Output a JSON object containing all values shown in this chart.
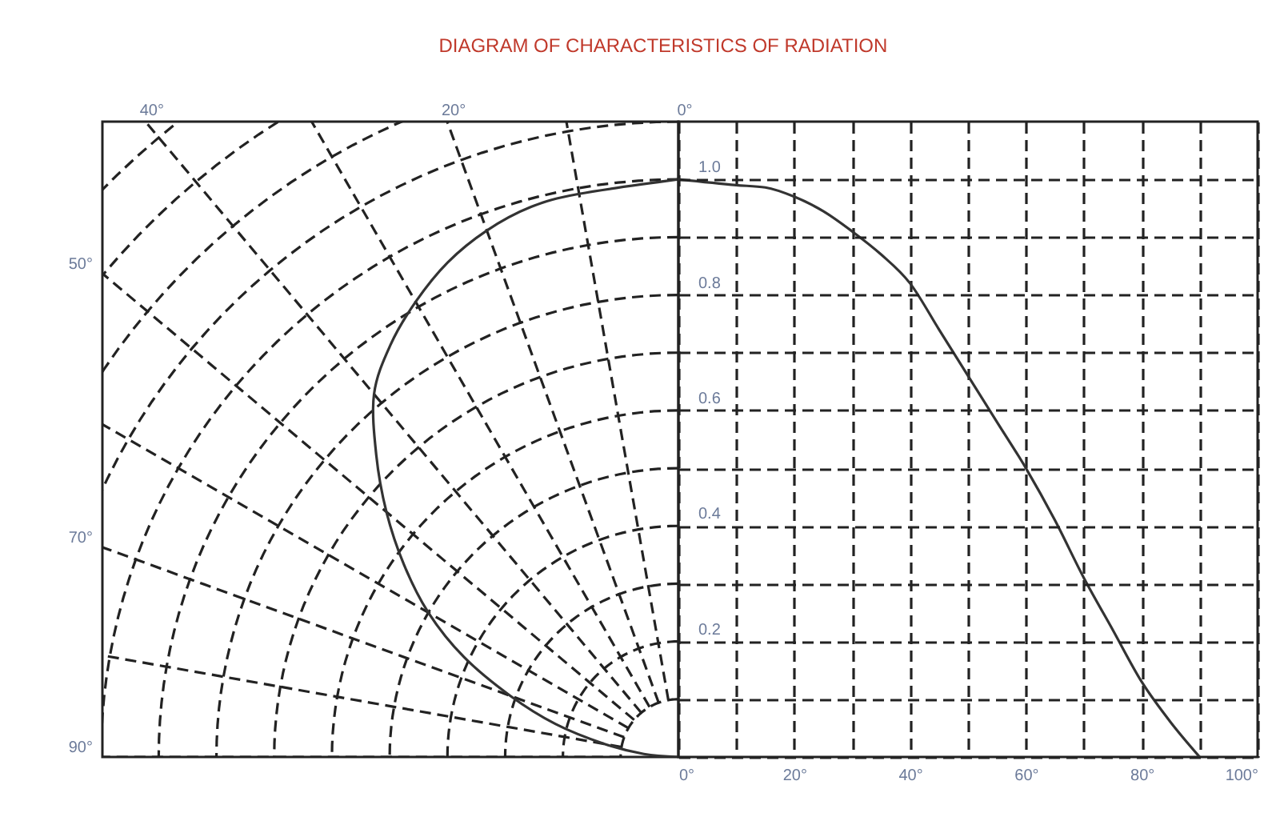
{
  "chart_data": {
    "type": "line",
    "title": "DIAGRAM OF CHARACTERISTICS OF RADIATION",
    "x": [
      0,
      10,
      15,
      20,
      25,
      30,
      35,
      40,
      45,
      50,
      55,
      60,
      65,
      70,
      75,
      80,
      85,
      90
    ],
    "series": [
      {
        "color": "#333333",
        "values": [
          1.0,
          0.99,
          0.986,
          0.97,
          0.945,
          0.91,
          0.87,
          0.82,
          0.74,
          0.66,
          0.58,
          0.5,
          0.41,
          0.31,
          0.22,
          0.13,
          0.06,
          0.0
        ]
      }
    ],
    "xlim": [
      0,
      100
    ],
    "xticks": [
      {
        "value": 0,
        "label": "0°"
      },
      {
        "value": 10,
        "label": null
      },
      {
        "value": 20,
        "label": "20°"
      },
      {
        "value": 30,
        "label": null
      },
      {
        "value": 40,
        "label": "40°"
      },
      {
        "value": 50,
        "label": null
      },
      {
        "value": 60,
        "label": "60°"
      },
      {
        "value": 70,
        "label": null
      },
      {
        "value": 80,
        "label": "80°"
      },
      {
        "value": 90,
        "label": null
      },
      {
        "value": 100,
        "label": "100°"
      }
    ],
    "ylim": [
      0,
      1.1
    ],
    "yticks": [
      {
        "value": 0,
        "label": null
      },
      {
        "value": 0.1,
        "label": null
      },
      0.2,
      {
        "value": 0.3,
        "label": null
      },
      0.4,
      {
        "value": 0.5,
        "label": null
      },
      0.6,
      {
        "value": 0.7,
        "label": null
      },
      0.8,
      {
        "value": 0.9,
        "label": null
      },
      {
        "value": 1.0,
        "label": "1.0"
      }
    ],
    "grid": true,
    "line_style": "solid",
    "annotations": [
      "40°",
      "20°",
      "0°",
      "50°",
      "70°",
      "90°"
    ]
  }
}
